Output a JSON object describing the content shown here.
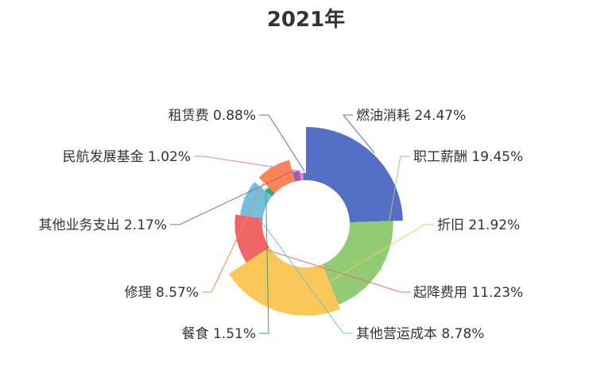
{
  "chart_data": {
    "type": "pie",
    "title": "2021年",
    "rose_type": "radius",
    "slices": [
      {
        "name": "燃油消耗",
        "value": 24.47,
        "label": "燃油消耗 24.47%",
        "color": "#5470c6"
      },
      {
        "name": "职工薪酬",
        "value": 19.45,
        "label": "职工薪酬 19.45%",
        "color": "#91cc75"
      },
      {
        "name": "折旧",
        "value": 21.92,
        "label": "折旧 21.92%",
        "color": "#fac858"
      },
      {
        "name": "起降费用",
        "value": 11.23,
        "label": "起降费用 11.23%",
        "color": "#ee6666"
      },
      {
        "name": "其他营运成本",
        "value": 8.78,
        "label": "其他营运成本 8.78%",
        "color": "#73c0de"
      },
      {
        "name": "餐食",
        "value": 1.51,
        "label": "餐食 1.51%",
        "color": "#3ba272"
      },
      {
        "name": "修理",
        "value": 8.57,
        "label": "修理 8.57%",
        "color": "#fc8452"
      },
      {
        "name": "其他业务支出",
        "value": 2.17,
        "label": "其他业务支出 2.17%",
        "color": "#9a60b4"
      },
      {
        "name": "民航发展基金",
        "value": 1.02,
        "label": "民航发展基金 1.02%",
        "color": "#ea7ccc"
      },
      {
        "name": "租赁费",
        "value": 0.88,
        "label": "租赁费 0.88%",
        "color": "#5470c6"
      }
    ]
  }
}
